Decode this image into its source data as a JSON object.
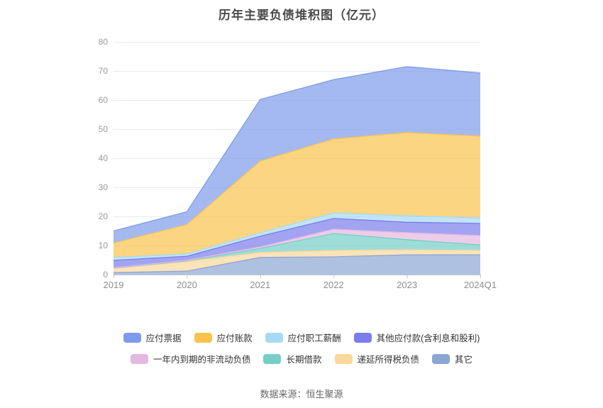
{
  "title": "历年主要负债堆积图（亿元）",
  "source": "数据来源：恒生聚源",
  "axis_colors": {
    "grid_line": "#e5e9f3",
    "axis_line": "#c4c6cc",
    "y_label": "#999999",
    "x_label": "#8e8e8e"
  },
  "chart_data": {
    "type": "area",
    "stacked": true,
    "title": "历年主要负债堆积图（亿元）",
    "categories": [
      "2019",
      "2020",
      "2021",
      "2022",
      "2023",
      "2024Q1"
    ],
    "series": [
      {
        "name": "应付票据",
        "color": "#7d9bea",
        "values": [
          4.2,
          4.4,
          21.2,
          20.4,
          22.7,
          21.7
        ]
      },
      {
        "name": "应付账款",
        "color": "#fbc34e",
        "values": [
          4.9,
          10.1,
          24.6,
          25.4,
          28.6,
          28.1
        ]
      },
      {
        "name": "应付职工薪酬",
        "color": "#a6daf2",
        "values": [
          1.0,
          0.8,
          1.2,
          1.9,
          2.2,
          1.9
        ]
      },
      {
        "name": "其他应付款(含利息和股利)",
        "color": "#7b7deb",
        "values": [
          2.6,
          1.4,
          3.7,
          3.7,
          3.6,
          4.2
        ]
      },
      {
        "name": "一年内到期的非流动负债",
        "color": "#e4b8e0",
        "values": [
          0.1,
          0.2,
          0.5,
          1.5,
          2.4,
          3.2
        ]
      },
      {
        "name": "长期借款",
        "color": "#75cfc6",
        "values": [
          0.0,
          0.2,
          1.4,
          5.8,
          3.5,
          1.9
        ]
      },
      {
        "name": "递延所得税负债",
        "color": "#fbd79b",
        "values": [
          1.5,
          3.3,
          1.7,
          2.2,
          1.7,
          1.5
        ]
      },
      {
        "name": "其它",
        "color": "#8ca6d4",
        "values": [
          0.7,
          1.2,
          5.9,
          6.1,
          6.8,
          6.8
        ]
      }
    ],
    "stack_order": "bottom-to-top is reverse of legend order (其它 at bottom, 应付票据 on top)",
    "totals": [
      15.0,
      21.6,
      60.2,
      67.0,
      71.5,
      69.3
    ],
    "xlabel": "",
    "ylabel": "",
    "ylim": [
      0,
      80
    ],
    "yticks": [
      0,
      10,
      20,
      30,
      40,
      50,
      60,
      70,
      80
    ],
    "grid": true,
    "legend_position": "bottom",
    "legend_rows": [
      [
        0,
        1,
        2,
        3
      ],
      [
        4,
        5,
        6,
        7
      ]
    ]
  }
}
